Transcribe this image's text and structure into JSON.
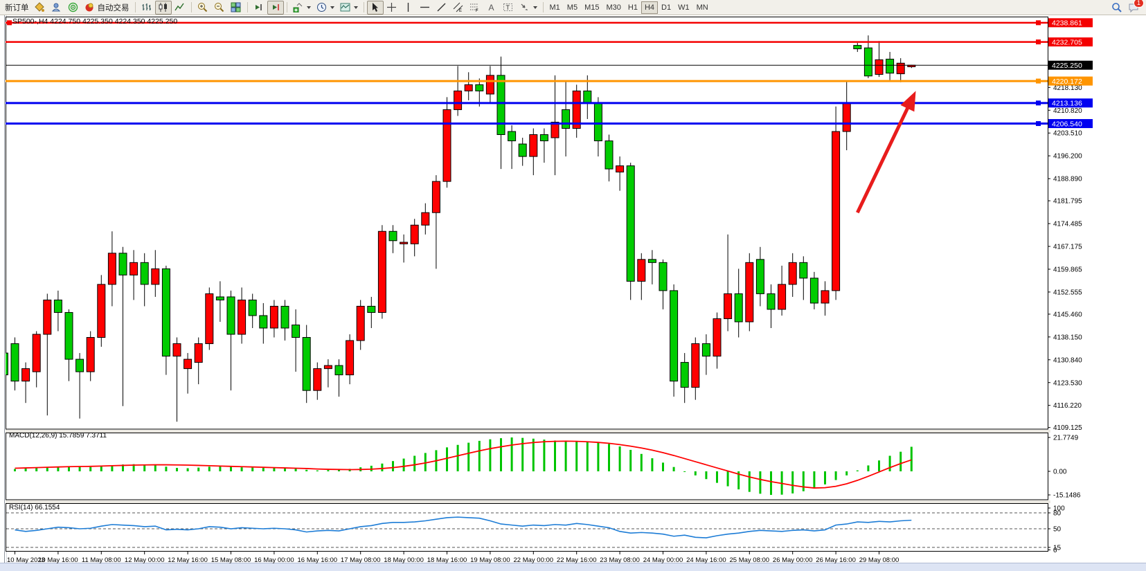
{
  "toolbar": {
    "new_order_label": "新订单",
    "autotrade_label": "自动交易",
    "timeframes": [
      "M1",
      "M5",
      "M15",
      "M30",
      "H1",
      "H4",
      "D1",
      "W1",
      "MN"
    ],
    "active_timeframe": "H4",
    "notification_count": "1"
  },
  "chart": {
    "title": "SP500-,H4 4224.750 4225.350 4224.350 4225.250",
    "symbol": "SP500-",
    "period": "H4"
  },
  "chart_data": {
    "type": "candlestick",
    "title": "SP500-,H4",
    "ohlc_readout": {
      "open": "4224.750",
      "high": "4225.350",
      "low": "4224.350",
      "close": "4225.250"
    },
    "up_color": "#ff0000",
    "down_color": "#00cc00",
    "price_axis_labels": [
      4218.13,
      4210.82,
      4203.51,
      4196.2,
      4188.89,
      4181.795,
      4174.485,
      4167.175,
      4159.865,
      4152.555,
      4145.46,
      4138.15,
      4130.84,
      4123.53,
      4116.22,
      4109.125
    ],
    "time_labels": [
      "10 May 2023",
      "10 May 16:00",
      "11 May 08:00",
      "12 May 00:00",
      "12 May 16:00",
      "15 May 08:00",
      "16 May 00:00",
      "16 May 16:00",
      "17 May 08:00",
      "18 May 00:00",
      "18 May 16:00",
      "19 May 08:00",
      "22 May 00:00",
      "22 May 16:00",
      "23 May 08:00",
      "24 May 00:00",
      "24 May 16:00",
      "25 May 08:00",
      "26 May 00:00",
      "26 May 16:00",
      "29 May 08:00"
    ],
    "bars_per_time_label": 4,
    "prev_partial_candle": [
      4133,
      4136,
      4122,
      4126
    ],
    "candles": [
      [
        4136,
        4138,
        4121,
        4124
      ],
      [
        4124,
        4130,
        4117,
        4128
      ],
      [
        4127,
        4140,
        4122,
        4139
      ],
      [
        4139,
        4152,
        4113,
        4150
      ],
      [
        4150,
        4153,
        4140,
        4146
      ],
      [
        4146,
        4147,
        4124,
        4131
      ],
      [
        4131,
        4133,
        4112,
        4127
      ],
      [
        4127,
        4140,
        4124,
        4138
      ],
      [
        4138,
        4158,
        4135,
        4155
      ],
      [
        4155,
        4172,
        4148,
        4165
      ],
      [
        4165,
        4167,
        4116,
        4158
      ],
      [
        4158,
        4166,
        4150,
        4162
      ],
      [
        4162,
        4165,
        4148,
        4155
      ],
      [
        4155,
        4166,
        4151,
        4160
      ],
      [
        4160,
        4161,
        4126,
        4132
      ],
      [
        4132,
        4138,
        4111,
        4136
      ],
      [
        4128,
        4133,
        4120,
        4131
      ],
      [
        4130,
        4138,
        4123,
        4136
      ],
      [
        4136,
        4154,
        4134,
        4152
      ],
      [
        4151,
        4156,
        4143,
        4150
      ],
      [
        4151,
        4153,
        4121,
        4139
      ],
      [
        4139,
        4154,
        4136,
        4150
      ],
      [
        4150,
        4152,
        4141,
        4145
      ],
      [
        4145,
        4149,
        4136,
        4141
      ],
      [
        4141,
        4150,
        4138,
        4148
      ],
      [
        4148,
        4150,
        4137,
        4141
      ],
      [
        4142,
        4147,
        4127,
        4138
      ],
      [
        4138,
        4142,
        4117,
        4121
      ],
      [
        4121,
        4130,
        4118,
        4128
      ],
      [
        4128,
        4131,
        4122,
        4129
      ],
      [
        4129,
        4131,
        4119,
        4126
      ],
      [
        4126,
        4139,
        4123,
        4137
      ],
      [
        4137,
        4150,
        4134,
        4148
      ],
      [
        4148,
        4151,
        4141,
        4146
      ],
      [
        4146,
        4174,
        4144,
        4172
      ],
      [
        4172,
        4174,
        4165,
        4169
      ],
      [
        4168,
        4171,
        4162,
        4168.5
      ],
      [
        4168,
        4176,
        4164,
        4174
      ],
      [
        4174,
        4181,
        4171,
        4178
      ],
      [
        4178,
        4190,
        4160,
        4188
      ],
      [
        4188,
        4215,
        4186,
        4211
      ],
      [
        4211,
        4225,
        4209,
        4217
      ],
      [
        4217,
        4223,
        4214,
        4219
      ],
      [
        4219,
        4221,
        4212,
        4217
      ],
      [
        4216,
        4225,
        4213,
        4222
      ],
      [
        4222,
        4228,
        4192,
        4203
      ],
      [
        4204,
        4206,
        4192,
        4201
      ],
      [
        4200,
        4202,
        4193,
        4196
      ],
      [
        4196,
        4205,
        4190,
        4203
      ],
      [
        4203,
        4205,
        4194,
        4201
      ],
      [
        4202,
        4222,
        4190,
        4207
      ],
      [
        4211,
        4220,
        4196,
        4205
      ],
      [
        4205,
        4219,
        4202,
        4217
      ],
      [
        4217,
        4222,
        4208,
        4213
      ],
      [
        4213,
        4215,
        4196,
        4201
      ],
      [
        4201,
        4203,
        4188,
        4192
      ],
      [
        4191,
        4196,
        4185,
        4193
      ],
      [
        4193,
        4194,
        4150,
        4156
      ],
      [
        4156,
        4165,
        4150,
        4163
      ],
      [
        4163,
        4166,
        4155,
        4162
      ],
      [
        4162,
        4163,
        4147,
        4153
      ],
      [
        4153,
        4155,
        4119,
        4124
      ],
      [
        4130,
        4133,
        4117,
        4122
      ],
      [
        4122,
        4138,
        4118,
        4136
      ],
      [
        4136,
        4139,
        4126,
        4132
      ],
      [
        4132,
        4146,
        4128,
        4144
      ],
      [
        4144,
        4171,
        4140,
        4152
      ],
      [
        4152,
        4160,
        4138,
        4143
      ],
      [
        4143,
        4165,
        4140,
        4162
      ],
      [
        4163,
        4167,
        4148,
        4152
      ],
      [
        4152,
        4155,
        4141,
        4147
      ],
      [
        4147,
        4161,
        4145,
        4155
      ],
      [
        4155,
        4165,
        4151,
        4162
      ],
      [
        4162,
        4164,
        4150,
        4157
      ],
      [
        4157,
        4159,
        4147,
        4149
      ],
      [
        4149,
        4156,
        4145,
        4153
      ],
      [
        4153,
        4212,
        4150,
        4204
      ],
      [
        4204,
        4220,
        4198,
        4213
      ],
      [
        4231.6,
        4232.4,
        4229.5,
        4230.5
      ],
      [
        4230.8,
        4234.8,
        4221.1,
        4221.8
      ],
      [
        4222.3,
        4233,
        4221.5,
        4227
      ],
      [
        4227.2,
        4229.5,
        4220.5,
        4222.7
      ],
      [
        4222.5,
        4227.5,
        4219.8,
        4225.9
      ],
      [
        4224.75,
        4225.35,
        4224.35,
        4225.25
      ]
    ],
    "horizontal_lines": [
      {
        "price": 4238.861,
        "color": "#f40000",
        "width": 2.5,
        "selected": true
      },
      {
        "price": 4232.705,
        "color": "#f40000",
        "width": 2.5,
        "selected": false
      },
      {
        "price": 4225.25,
        "color": "#000000",
        "width": 1,
        "selected": false
      },
      {
        "price": 4220.172,
        "color": "#ff9500",
        "width": 3,
        "selected": false
      },
      {
        "price": 4213.136,
        "color": "#0000f0",
        "width": 3,
        "selected": false
      },
      {
        "price": 4206.54,
        "color": "#0000f0",
        "width": 3,
        "selected": false
      }
    ],
    "price_tags": [
      {
        "value": "4238.861",
        "color": "#f40000"
      },
      {
        "value": "4232.705",
        "color": "#f40000"
      },
      {
        "value": "4225.250",
        "color": "#000000"
      },
      {
        "value": "4220.172",
        "color": "#ff9500"
      },
      {
        "value": "4213.136",
        "color": "#0000f0"
      },
      {
        "value": "4206.540",
        "color": "#0000f0"
      }
    ],
    "macd": {
      "label": "MACD(12,26,9) 15.7859 7.3711",
      "params": "12,26,9",
      "main_value": "15.7859",
      "signal_value": "7.3711",
      "scale": [
        "21.7749",
        "0.00",
        "-15.1486"
      ],
      "hist_color": "#00c400",
      "signal_color": "#ff0000",
      "main": [
        1.5,
        1.8,
        2.2,
        2.6,
        3,
        3.2,
        3,
        2.8,
        3.4,
        4,
        4.4,
        4.6,
        4.4,
        4,
        3,
        2.2,
        2,
        2.4,
        3,
        3.4,
        3,
        2.6,
        2.4,
        2.2,
        2.4,
        2.2,
        1.8,
        1,
        0.6,
        0.8,
        1,
        1.6,
        2.6,
        3.6,
        5,
        6.6,
        8.2,
        10,
        11.8,
        13.6,
        15.4,
        17,
        18.4,
        19.6,
        20.6,
        21.3,
        21.7749,
        21.5,
        21,
        20.4,
        19.8,
        19.4,
        19.2,
        19,
        18.6,
        17.6,
        16,
        13.8,
        11.2,
        8.4,
        5.6,
        2.8,
        0,
        -2.6,
        -5,
        -7.4,
        -9.6,
        -11.6,
        -13.2,
        -14.4,
        -15.1486,
        -15,
        -14.2,
        -12.8,
        -10.8,
        -8.4,
        -5.6,
        -2.6,
        0.6,
        3.8,
        7,
        10,
        12.6,
        15.7859
      ],
      "signal": [
        2,
        2.2,
        2.4,
        2.6,
        2.8,
        3,
        3.1,
        3.2,
        3.4,
        3.6,
        3.8,
        4,
        4.1,
        4.2,
        4.2,
        4.1,
        4,
        3.8,
        3.6,
        3.4,
        3.2,
        3,
        2.8,
        2.6,
        2.4,
        2.2,
        2,
        1.8,
        1.5,
        1.3,
        1.2,
        1.1,
        1.2,
        1.4,
        1.8,
        2.4,
        3.2,
        4.2,
        5.4,
        6.8,
        8.4,
        10,
        11.6,
        13.2,
        14.6,
        15.8,
        16.9,
        17.8,
        18.5,
        19,
        19.3,
        19.4,
        19.3,
        19,
        18.6,
        18,
        17.2,
        16.2,
        15,
        13.6,
        12,
        10.2,
        8.2,
        6.2,
        4.2,
        2.2,
        0.2,
        -1.8,
        -3.6,
        -5.2,
        -6.6,
        -7.8,
        -9,
        -10,
        -10.7,
        -10.5,
        -9.6,
        -8,
        -5.8,
        -3.2,
        -0.4,
        2.4,
        5,
        7.3711
      ]
    },
    "rsi": {
      "label": "RSI(14) 66.1554",
      "value": "66.1554",
      "scale": [
        "100",
        "80",
        "50",
        "15",
        "0"
      ],
      "levels": [
        80,
        50,
        15
      ],
      "line_color": "#1c7cd6",
      "values": [
        48,
        45,
        47,
        50,
        53,
        52,
        50,
        51,
        55,
        58,
        57,
        56,
        54,
        55,
        48,
        49,
        48,
        50,
        54,
        53,
        50,
        52,
        51,
        50,
        51,
        50,
        48,
        44,
        46,
        47,
        46,
        50,
        54,
        56,
        60,
        62,
        62,
        63,
        65,
        68,
        71,
        72,
        71,
        70,
        65,
        59,
        57,
        55,
        57,
        56,
        58,
        57,
        60,
        58,
        55,
        52,
        45,
        42,
        43,
        42,
        40,
        36,
        38,
        34,
        33,
        37,
        40,
        42,
        45,
        47,
        46,
        45,
        47,
        48,
        46,
        48,
        57,
        59,
        63,
        62,
        64,
        63,
        65,
        66.1554
      ]
    },
    "arrow": {
      "from": {
        "bar": 78,
        "price": 4178
      },
      "to": {
        "bar": 83.4,
        "price": 4217
      },
      "color": "#e81c1c"
    }
  }
}
